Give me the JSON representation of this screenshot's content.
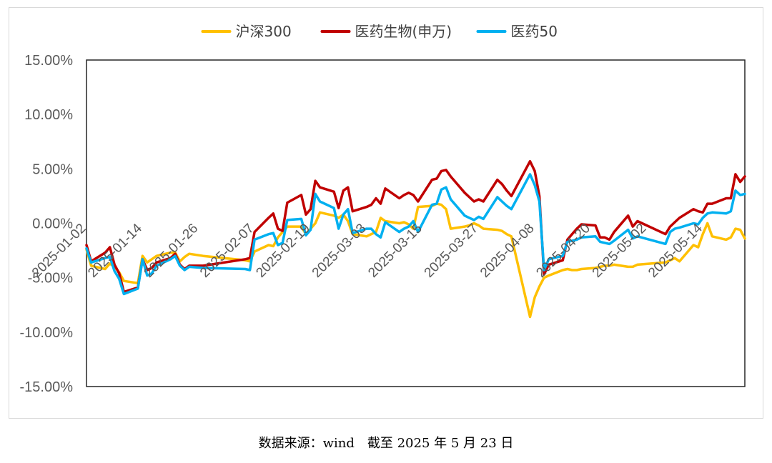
{
  "chart_data": {
    "type": "line",
    "yticks": [
      "15.00%",
      "10.00%",
      "5.00%",
      "0.00%",
      "-5.00%",
      "-10.00%",
      "-15.00%"
    ],
    "ylim": [
      -15,
      15
    ],
    "x_tick_labels": [
      "2025-01-02",
      "2025-01-14",
      "2025-01-26",
      "2025-02-07",
      "2025-02-19",
      "2025-03-03",
      "2025-03-15",
      "2025-03-27",
      "2025-04-08",
      "2025-04-20",
      "2025-05-02",
      "2025-05-14"
    ],
    "xlim": [
      "2025-01-02",
      "2025-05-23"
    ],
    "legend_position": "top-center",
    "series": [
      {
        "name": "沪深300",
        "color": "#FFC000",
        "points": [
          [
            "2025-01-02",
            -2.4
          ],
          [
            "2025-01-03",
            -3.9
          ],
          [
            "2025-01-06",
            -4.2
          ],
          [
            "2025-01-07",
            -3.7
          ],
          [
            "2025-01-08",
            -4.0
          ],
          [
            "2025-01-09",
            -4.5
          ],
          [
            "2025-01-10",
            -5.3
          ],
          [
            "2025-01-13",
            -5.5
          ],
          [
            "2025-01-14",
            -3.0
          ],
          [
            "2025-01-15",
            -3.6
          ],
          [
            "2025-01-16",
            -3.3
          ],
          [
            "2025-01-17",
            -3.0
          ],
          [
            "2025-01-20",
            -2.7
          ],
          [
            "2025-01-21",
            -2.7
          ],
          [
            "2025-01-22",
            -3.5
          ],
          [
            "2025-01-23",
            -3.1
          ],
          [
            "2025-01-24",
            -2.8
          ],
          [
            "2025-01-27",
            -3.0
          ],
          [
            "2025-02-05",
            -3.4
          ],
          [
            "2025-02-06",
            -3.5
          ],
          [
            "2025-02-07",
            -2.6
          ],
          [
            "2025-02-10",
            -2.0
          ],
          [
            "2025-02-11",
            -2.1
          ],
          [
            "2025-02-12",
            -1.3
          ],
          [
            "2025-02-13",
            -0.8
          ],
          [
            "2025-02-14",
            -0.3
          ],
          [
            "2025-02-17",
            -0.3
          ],
          [
            "2025-02-18",
            -1.0
          ],
          [
            "2025-02-19",
            -0.5
          ],
          [
            "2025-02-20",
            0.0
          ],
          [
            "2025-02-21",
            1.0
          ],
          [
            "2025-02-24",
            0.7
          ],
          [
            "2025-02-25",
            0.5
          ],
          [
            "2025-02-26",
            0.8
          ],
          [
            "2025-02-27",
            0.2
          ],
          [
            "2025-02-28",
            -1.0
          ],
          [
            "2025-03-03",
            -1.2
          ],
          [
            "2025-03-04",
            -1.0
          ],
          [
            "2025-03-05",
            -0.8
          ],
          [
            "2025-03-06",
            0.5
          ],
          [
            "2025-03-07",
            0.2
          ],
          [
            "2025-03-10",
            0.0
          ],
          [
            "2025-03-11",
            0.1
          ],
          [
            "2025-03-12",
            -0.1
          ],
          [
            "2025-03-13",
            -0.5
          ],
          [
            "2025-03-14",
            1.5
          ],
          [
            "2025-03-17",
            1.6
          ],
          [
            "2025-03-18",
            1.8
          ],
          [
            "2025-03-19",
            1.7
          ],
          [
            "2025-03-20",
            1.3
          ],
          [
            "2025-03-21",
            -0.5
          ],
          [
            "2025-03-24",
            -0.3
          ],
          [
            "2025-03-25",
            -0.2
          ],
          [
            "2025-03-26",
            0.0
          ],
          [
            "2025-03-27",
            -0.2
          ],
          [
            "2025-03-28",
            -0.5
          ],
          [
            "2025-03-31",
            -0.6
          ],
          [
            "2025-04-01",
            -0.7
          ],
          [
            "2025-04-02",
            -1.0
          ],
          [
            "2025-04-03",
            -1.2
          ],
          [
            "2025-04-07",
            -8.6
          ],
          [
            "2025-04-08",
            -6.8
          ],
          [
            "2025-04-09",
            -5.8
          ],
          [
            "2025-04-10",
            -5.0
          ],
          [
            "2025-04-11",
            -4.8
          ],
          [
            "2025-04-14",
            -4.3
          ],
          [
            "2025-04-15",
            -4.2
          ],
          [
            "2025-04-16",
            -4.3
          ],
          [
            "2025-04-17",
            -4.3
          ],
          [
            "2025-04-18",
            -4.2
          ],
          [
            "2025-04-21",
            -4.1
          ],
          [
            "2025-04-22",
            -4.0
          ],
          [
            "2025-04-23",
            -3.9
          ],
          [
            "2025-04-24",
            -3.9
          ],
          [
            "2025-04-25",
            -3.8
          ],
          [
            "2025-04-28",
            -4.0
          ],
          [
            "2025-04-29",
            -4.0
          ],
          [
            "2025-04-30",
            -3.8
          ],
          [
            "2025-05-06",
            -3.6
          ],
          [
            "2025-05-07",
            -3.4
          ],
          [
            "2025-05-08",
            -3.2
          ],
          [
            "2025-05-09",
            -3.5
          ],
          [
            "2025-05-12",
            -2.0
          ],
          [
            "2025-05-13",
            -2.2
          ],
          [
            "2025-05-14",
            -1.0
          ],
          [
            "2025-05-15",
            0.0
          ],
          [
            "2025-05-16",
            -1.2
          ],
          [
            "2025-05-19",
            -1.5
          ],
          [
            "2025-05-20",
            -1.3
          ],
          [
            "2025-05-21",
            -0.5
          ],
          [
            "2025-05-22",
            -0.6
          ],
          [
            "2025-05-23",
            -1.4
          ]
        ]
      },
      {
        "name": "医药生物(申万)",
        "color": "#C00000",
        "points": [
          [
            "2025-01-02",
            -2.0
          ],
          [
            "2025-01-03",
            -3.5
          ],
          [
            "2025-01-06",
            -2.7
          ],
          [
            "2025-01-07",
            -2.2
          ],
          [
            "2025-01-08",
            -3.8
          ],
          [
            "2025-01-09",
            -4.6
          ],
          [
            "2025-01-10",
            -6.3
          ],
          [
            "2025-01-13",
            -5.9
          ],
          [
            "2025-01-14",
            -3.3
          ],
          [
            "2025-01-15",
            -4.3
          ],
          [
            "2025-01-16",
            -4.1
          ],
          [
            "2025-01-17",
            -3.6
          ],
          [
            "2025-01-20",
            -3.2
          ],
          [
            "2025-01-21",
            -2.8
          ],
          [
            "2025-01-22",
            -3.8
          ],
          [
            "2025-01-23",
            -4.2
          ],
          [
            "2025-01-24",
            -3.9
          ],
          [
            "2025-01-27",
            -3.9
          ],
          [
            "2025-02-05",
            -3.3
          ],
          [
            "2025-02-06",
            -3.2
          ],
          [
            "2025-02-07",
            -0.8
          ],
          [
            "2025-02-10",
            0.5
          ],
          [
            "2025-02-11",
            0.9
          ],
          [
            "2025-02-12",
            -0.5
          ],
          [
            "2025-02-13",
            -0.7
          ],
          [
            "2025-02-14",
            1.9
          ],
          [
            "2025-02-17",
            2.6
          ],
          [
            "2025-02-18",
            0.8
          ],
          [
            "2025-02-19",
            1.3
          ],
          [
            "2025-02-20",
            3.9
          ],
          [
            "2025-02-21",
            3.3
          ],
          [
            "2025-02-24",
            2.9
          ],
          [
            "2025-02-25",
            1.4
          ],
          [
            "2025-02-26",
            3.0
          ],
          [
            "2025-02-27",
            3.3
          ],
          [
            "2025-02-28",
            1.1
          ],
          [
            "2025-03-03",
            1.5
          ],
          [
            "2025-03-04",
            1.7
          ],
          [
            "2025-03-05",
            2.3
          ],
          [
            "2025-03-06",
            1.8
          ],
          [
            "2025-03-07",
            3.2
          ],
          [
            "2025-03-10",
            2.3
          ],
          [
            "2025-03-11",
            2.6
          ],
          [
            "2025-03-12",
            2.8
          ],
          [
            "2025-03-13",
            2.6
          ],
          [
            "2025-03-14",
            2.0
          ],
          [
            "2025-03-17",
            4.0
          ],
          [
            "2025-03-18",
            4.1
          ],
          [
            "2025-03-19",
            4.8
          ],
          [
            "2025-03-20",
            4.9
          ],
          [
            "2025-03-21",
            4.3
          ],
          [
            "2025-03-24",
            2.8
          ],
          [
            "2025-03-25",
            2.4
          ],
          [
            "2025-03-26",
            2.0
          ],
          [
            "2025-03-27",
            2.2
          ],
          [
            "2025-03-28",
            2.0
          ],
          [
            "2025-03-31",
            4.0
          ],
          [
            "2025-04-01",
            3.6
          ],
          [
            "2025-04-02",
            3.0
          ],
          [
            "2025-04-03",
            2.5
          ],
          [
            "2025-04-07",
            5.7
          ],
          [
            "2025-04-08",
            4.8
          ],
          [
            "2025-04-09",
            2.5
          ],
          [
            "2025-04-10",
            -4.7
          ],
          [
            "2025-04-11",
            -3.8
          ],
          [
            "2025-04-14",
            -3.4
          ],
          [
            "2025-04-15",
            -1.5
          ],
          [
            "2025-04-16",
            -1.0
          ],
          [
            "2025-04-17",
            -0.5
          ],
          [
            "2025-04-18",
            -0.1
          ],
          [
            "2025-04-21",
            -0.2
          ],
          [
            "2025-04-22",
            -1.3
          ],
          [
            "2025-04-23",
            -1.3
          ],
          [
            "2025-04-24",
            -1.5
          ],
          [
            "2025-04-25",
            -0.8
          ],
          [
            "2025-04-28",
            0.7
          ],
          [
            "2025-04-29",
            -0.3
          ],
          [
            "2025-04-30",
            0.2
          ],
          [
            "2025-05-06",
            -1.0
          ],
          [
            "2025-05-07",
            -0.3
          ],
          [
            "2025-05-08",
            0.1
          ],
          [
            "2025-05-09",
            0.5
          ],
          [
            "2025-05-12",
            1.3
          ],
          [
            "2025-05-13",
            1.1
          ],
          [
            "2025-05-14",
            1.0
          ],
          [
            "2025-05-15",
            1.8
          ],
          [
            "2025-05-16",
            1.8
          ],
          [
            "2025-05-19",
            2.3
          ],
          [
            "2025-05-20",
            2.3
          ],
          [
            "2025-05-21",
            4.5
          ],
          [
            "2025-05-22",
            3.8
          ],
          [
            "2025-05-23",
            4.3
          ]
        ]
      },
      {
        "name": "医药50",
        "color": "#00B0F0",
        "points": [
          [
            "2025-01-02",
            -2.3
          ],
          [
            "2025-01-03",
            -3.6
          ],
          [
            "2025-01-06",
            -3.2
          ],
          [
            "2025-01-07",
            -3.1
          ],
          [
            "2025-01-08",
            -4.4
          ],
          [
            "2025-01-09",
            -5.1
          ],
          [
            "2025-01-10",
            -6.5
          ],
          [
            "2025-01-13",
            -6.0
          ],
          [
            "2025-01-14",
            -3.3
          ],
          [
            "2025-01-15",
            -4.8
          ],
          [
            "2025-01-16",
            -4.6
          ],
          [
            "2025-01-17",
            -3.9
          ],
          [
            "2025-01-20",
            -3.3
          ],
          [
            "2025-01-21",
            -3.0
          ],
          [
            "2025-01-22",
            -3.9
          ],
          [
            "2025-01-23",
            -4.3
          ],
          [
            "2025-01-24",
            -4.0
          ],
          [
            "2025-01-27",
            -4.1
          ],
          [
            "2025-02-05",
            -4.2
          ],
          [
            "2025-02-06",
            -4.3
          ],
          [
            "2025-02-07",
            -1.5
          ],
          [
            "2025-02-10",
            -1.0
          ],
          [
            "2025-02-11",
            -0.9
          ],
          [
            "2025-02-12",
            -2.0
          ],
          [
            "2025-02-13",
            -1.8
          ],
          [
            "2025-02-14",
            0.3
          ],
          [
            "2025-02-17",
            0.4
          ],
          [
            "2025-02-18",
            -1.1
          ],
          [
            "2025-02-19",
            -0.6
          ],
          [
            "2025-02-20",
            2.7
          ],
          [
            "2025-02-21",
            2.0
          ],
          [
            "2025-02-24",
            1.4
          ],
          [
            "2025-02-25",
            -0.5
          ],
          [
            "2025-02-26",
            0.8
          ],
          [
            "2025-02-27",
            1.3
          ],
          [
            "2025-02-28",
            -0.9
          ],
          [
            "2025-03-03",
            -0.5
          ],
          [
            "2025-03-04",
            -0.5
          ],
          [
            "2025-03-05",
            -1.0
          ],
          [
            "2025-03-06",
            -1.3
          ],
          [
            "2025-03-07",
            0.1
          ],
          [
            "2025-03-10",
            -0.8
          ],
          [
            "2025-03-11",
            -0.5
          ],
          [
            "2025-03-12",
            -0.3
          ],
          [
            "2025-03-13",
            0.2
          ],
          [
            "2025-03-14",
            -0.8
          ],
          [
            "2025-03-17",
            1.7
          ],
          [
            "2025-03-18",
            1.8
          ],
          [
            "2025-03-19",
            3.1
          ],
          [
            "2025-03-20",
            3.3
          ],
          [
            "2025-03-21",
            2.2
          ],
          [
            "2025-03-24",
            0.7
          ],
          [
            "2025-03-25",
            0.5
          ],
          [
            "2025-03-26",
            0.3
          ],
          [
            "2025-03-27",
            0.6
          ],
          [
            "2025-03-28",
            0.4
          ],
          [
            "2025-03-31",
            2.4
          ],
          [
            "2025-04-01",
            2.0
          ],
          [
            "2025-04-02",
            1.6
          ],
          [
            "2025-04-03",
            1.3
          ],
          [
            "2025-04-07",
            4.5
          ],
          [
            "2025-04-08",
            3.5
          ],
          [
            "2025-04-09",
            2.0
          ],
          [
            "2025-04-10",
            -4.3
          ],
          [
            "2025-04-11",
            -3.3
          ],
          [
            "2025-04-14",
            -3.0
          ],
          [
            "2025-04-15",
            -1.7
          ],
          [
            "2025-04-16",
            -1.6
          ],
          [
            "2025-04-17",
            -1.5
          ],
          [
            "2025-04-18",
            -1.3
          ],
          [
            "2025-04-21",
            -1.2
          ],
          [
            "2025-04-22",
            -1.7
          ],
          [
            "2025-04-23",
            -1.8
          ],
          [
            "2025-04-24",
            -1.9
          ],
          [
            "2025-04-25",
            -1.6
          ],
          [
            "2025-04-28",
            -0.6
          ],
          [
            "2025-04-29",
            -1.4
          ],
          [
            "2025-04-30",
            -1.2
          ],
          [
            "2025-05-06",
            -1.9
          ],
          [
            "2025-05-07",
            -0.8
          ],
          [
            "2025-05-08",
            -0.5
          ],
          [
            "2025-05-09",
            -0.4
          ],
          [
            "2025-05-12",
            0.0
          ],
          [
            "2025-05-13",
            -0.1
          ],
          [
            "2025-05-14",
            0.5
          ],
          [
            "2025-05-15",
            0.9
          ],
          [
            "2025-05-16",
            1.0
          ],
          [
            "2025-05-19",
            0.9
          ],
          [
            "2025-05-20",
            1.1
          ],
          [
            "2025-05-21",
            3.0
          ],
          [
            "2025-05-22",
            2.6
          ],
          [
            "2025-05-23",
            2.7
          ]
        ]
      }
    ]
  },
  "source_note": "数据来源：wind　截至 2025 年 5 月 23 日"
}
